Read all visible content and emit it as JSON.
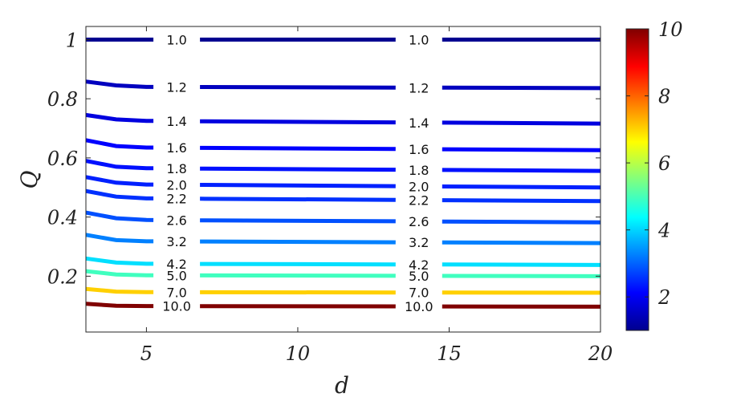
{
  "chart_data": {
    "type": "line",
    "subtype": "contour",
    "xlabel": "d",
    "ylabel": "Q",
    "xlim": [
      3,
      20
    ],
    "ylim": [
      0.05,
      1.0
    ],
    "xticks": [
      "5",
      "10",
      "15",
      "20"
    ],
    "yticks": [
      "0.2",
      "0.4",
      "0.6",
      "0.8",
      "1"
    ],
    "colorbar": {
      "range": [
        1,
        10
      ],
      "ticks": [
        "2",
        "4",
        "6",
        "8",
        "10"
      ],
      "colormap": "jet"
    },
    "label_x_positions": [
      6.0,
      14.0
    ],
    "series": [
      {
        "name": "1.0",
        "level": 1.0,
        "color": "#00008f",
        "x": [
          3,
          4,
          5,
          20
        ],
        "y": [
          1.0,
          1.0,
          1.0,
          1.0
        ]
      },
      {
        "name": "1.2",
        "level": 1.2,
        "color": "#0000bf",
        "x": [
          3,
          4,
          5,
          20
        ],
        "y": [
          0.858,
          0.845,
          0.84,
          0.836
        ]
      },
      {
        "name": "1.4",
        "level": 1.4,
        "color": "#0000df",
        "x": [
          3,
          4,
          5,
          20
        ],
        "y": [
          0.745,
          0.73,
          0.725,
          0.716
        ]
      },
      {
        "name": "1.6",
        "level": 1.6,
        "color": "#0000ff",
        "x": [
          3,
          4,
          5,
          20
        ],
        "y": [
          0.66,
          0.64,
          0.635,
          0.626
        ]
      },
      {
        "name": "1.8",
        "level": 1.8,
        "color": "#0010ff",
        "x": [
          3,
          4,
          5,
          20
        ],
        "y": [
          0.59,
          0.57,
          0.565,
          0.556
        ]
      },
      {
        "name": "2.0",
        "level": 2.0,
        "color": "#0020ff",
        "x": [
          3,
          4,
          5,
          20
        ],
        "y": [
          0.535,
          0.516,
          0.51,
          0.5
        ]
      },
      {
        "name": "2.2",
        "level": 2.2,
        "color": "#0030ff",
        "x": [
          3,
          4,
          5,
          20
        ],
        "y": [
          0.488,
          0.469,
          0.463,
          0.454
        ]
      },
      {
        "name": "2.6",
        "level": 2.6,
        "color": "#0050ff",
        "x": [
          3,
          4,
          5,
          20
        ],
        "y": [
          0.415,
          0.396,
          0.39,
          0.382
        ]
      },
      {
        "name": "3.2",
        "level": 3.2,
        "color": "#0080ff",
        "x": [
          3,
          4,
          5,
          20
        ],
        "y": [
          0.34,
          0.322,
          0.318,
          0.312
        ]
      },
      {
        "name": "4.2",
        "level": 4.2,
        "color": "#00dfff",
        "x": [
          3,
          4,
          5,
          20
        ],
        "y": [
          0.26,
          0.246,
          0.242,
          0.238
        ]
      },
      {
        "name": "5.0",
        "level": 5.0,
        "color": "#40ffbf",
        "x": [
          3,
          4,
          5,
          20
        ],
        "y": [
          0.217,
          0.206,
          0.203,
          0.2
        ]
      },
      {
        "name": "7.0",
        "level": 7.0,
        "color": "#ffd000",
        "x": [
          3,
          4,
          5,
          20
        ],
        "y": [
          0.157,
          0.148,
          0.146,
          0.144
        ]
      },
      {
        "name": "10.0",
        "level": 10.0,
        "color": "#800000",
        "x": [
          3,
          4,
          5,
          20
        ],
        "y": [
          0.107,
          0.1,
          0.099,
          0.097
        ]
      }
    ]
  }
}
